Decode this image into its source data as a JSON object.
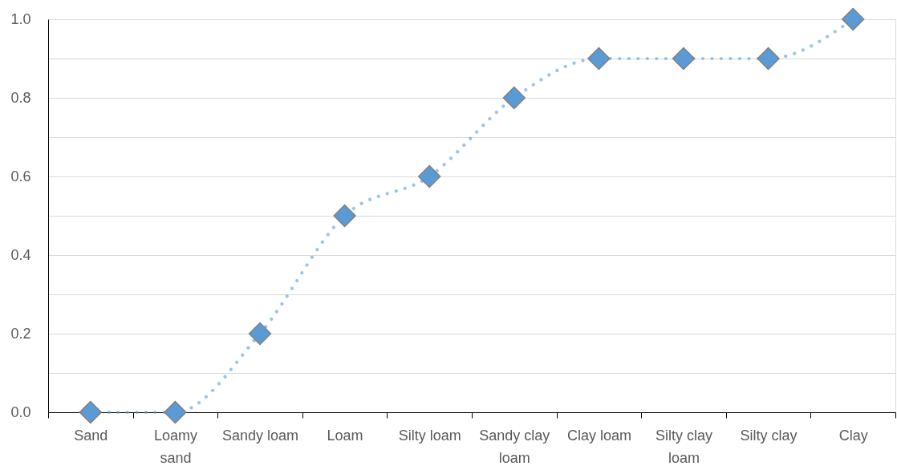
{
  "chart_data": {
    "type": "line",
    "categories": [
      "Sand",
      "Loamy\nsand",
      "Sandy loam",
      "Loam",
      "Silty loam",
      "Sandy clay\nloam",
      "Clay loam",
      "Silty clay\nloam",
      "Silty clay",
      "Clay"
    ],
    "series": [
      {
        "color": "#5b9bd5",
        "values": [
          0,
          0,
          0.2,
          0.5,
          0.6,
          0.8,
          0.9,
          0.9,
          0.9,
          1.0
        ]
      }
    ],
    "ylim": [
      0,
      1
    ],
    "yticks": [
      {
        "value": 0,
        "label": "0.0"
      },
      {
        "value": 0.1,
        "label": null
      },
      0.2,
      {
        "value": 0.3,
        "label": null
      },
      0.4,
      {
        "value": 0.5,
        "label": null
      },
      0.6,
      {
        "value": 0.7,
        "label": null
      },
      0.8,
      {
        "value": 0.9,
        "label": null
      },
      {
        "value": 1,
        "label": "1.0"
      }
    ],
    "grid": "y",
    "marker": "diamond",
    "line_style": "dotted"
  }
}
